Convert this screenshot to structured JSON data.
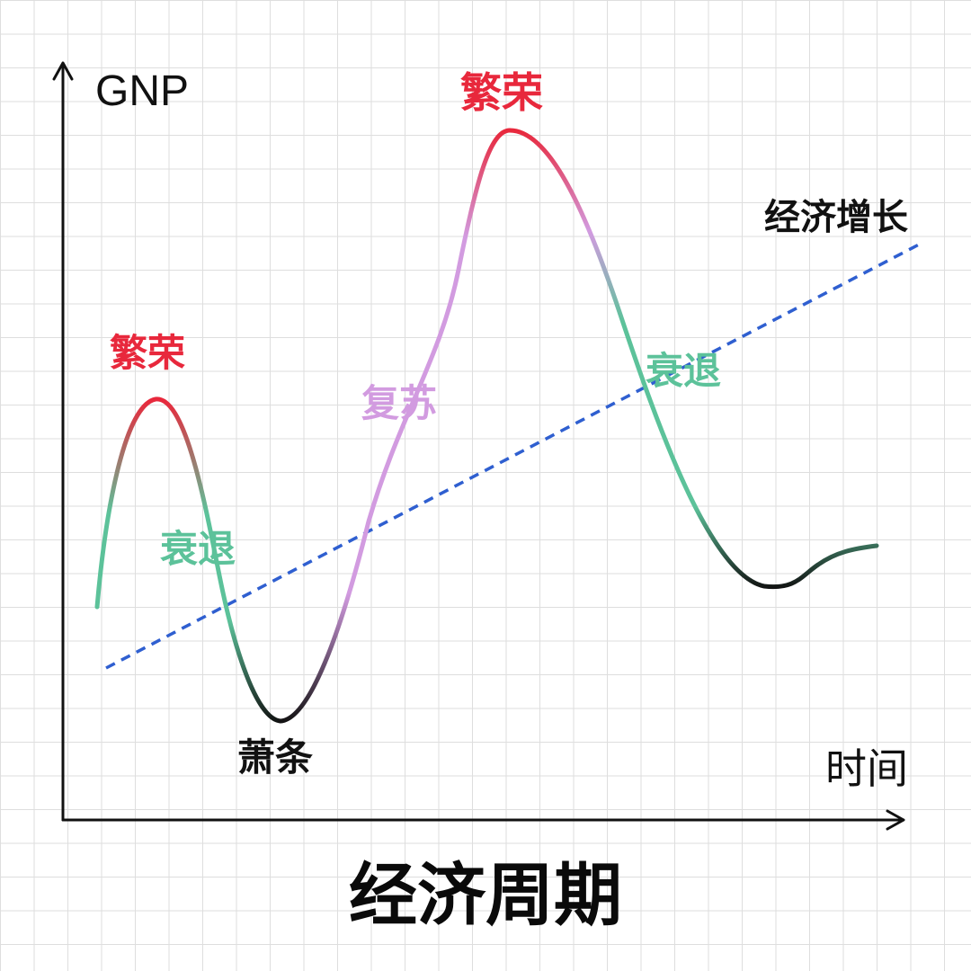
{
  "title": "经济周期",
  "axes": {
    "y_label": "GNP",
    "x_label": "时间"
  },
  "labels": {
    "prosperity_1": "繁荣",
    "recession_1": "衰退",
    "depression": "萧条",
    "recovery": "复苏",
    "prosperity_2": "繁荣",
    "recession_2": "衰退",
    "trend": "经济增长"
  },
  "colors": {
    "prosperity": "#e8283c",
    "recession": "#5cc29a",
    "depression": "#111111",
    "recovery": "#d29be0",
    "trend": "#2f5fd0",
    "axis": "#111111"
  }
}
